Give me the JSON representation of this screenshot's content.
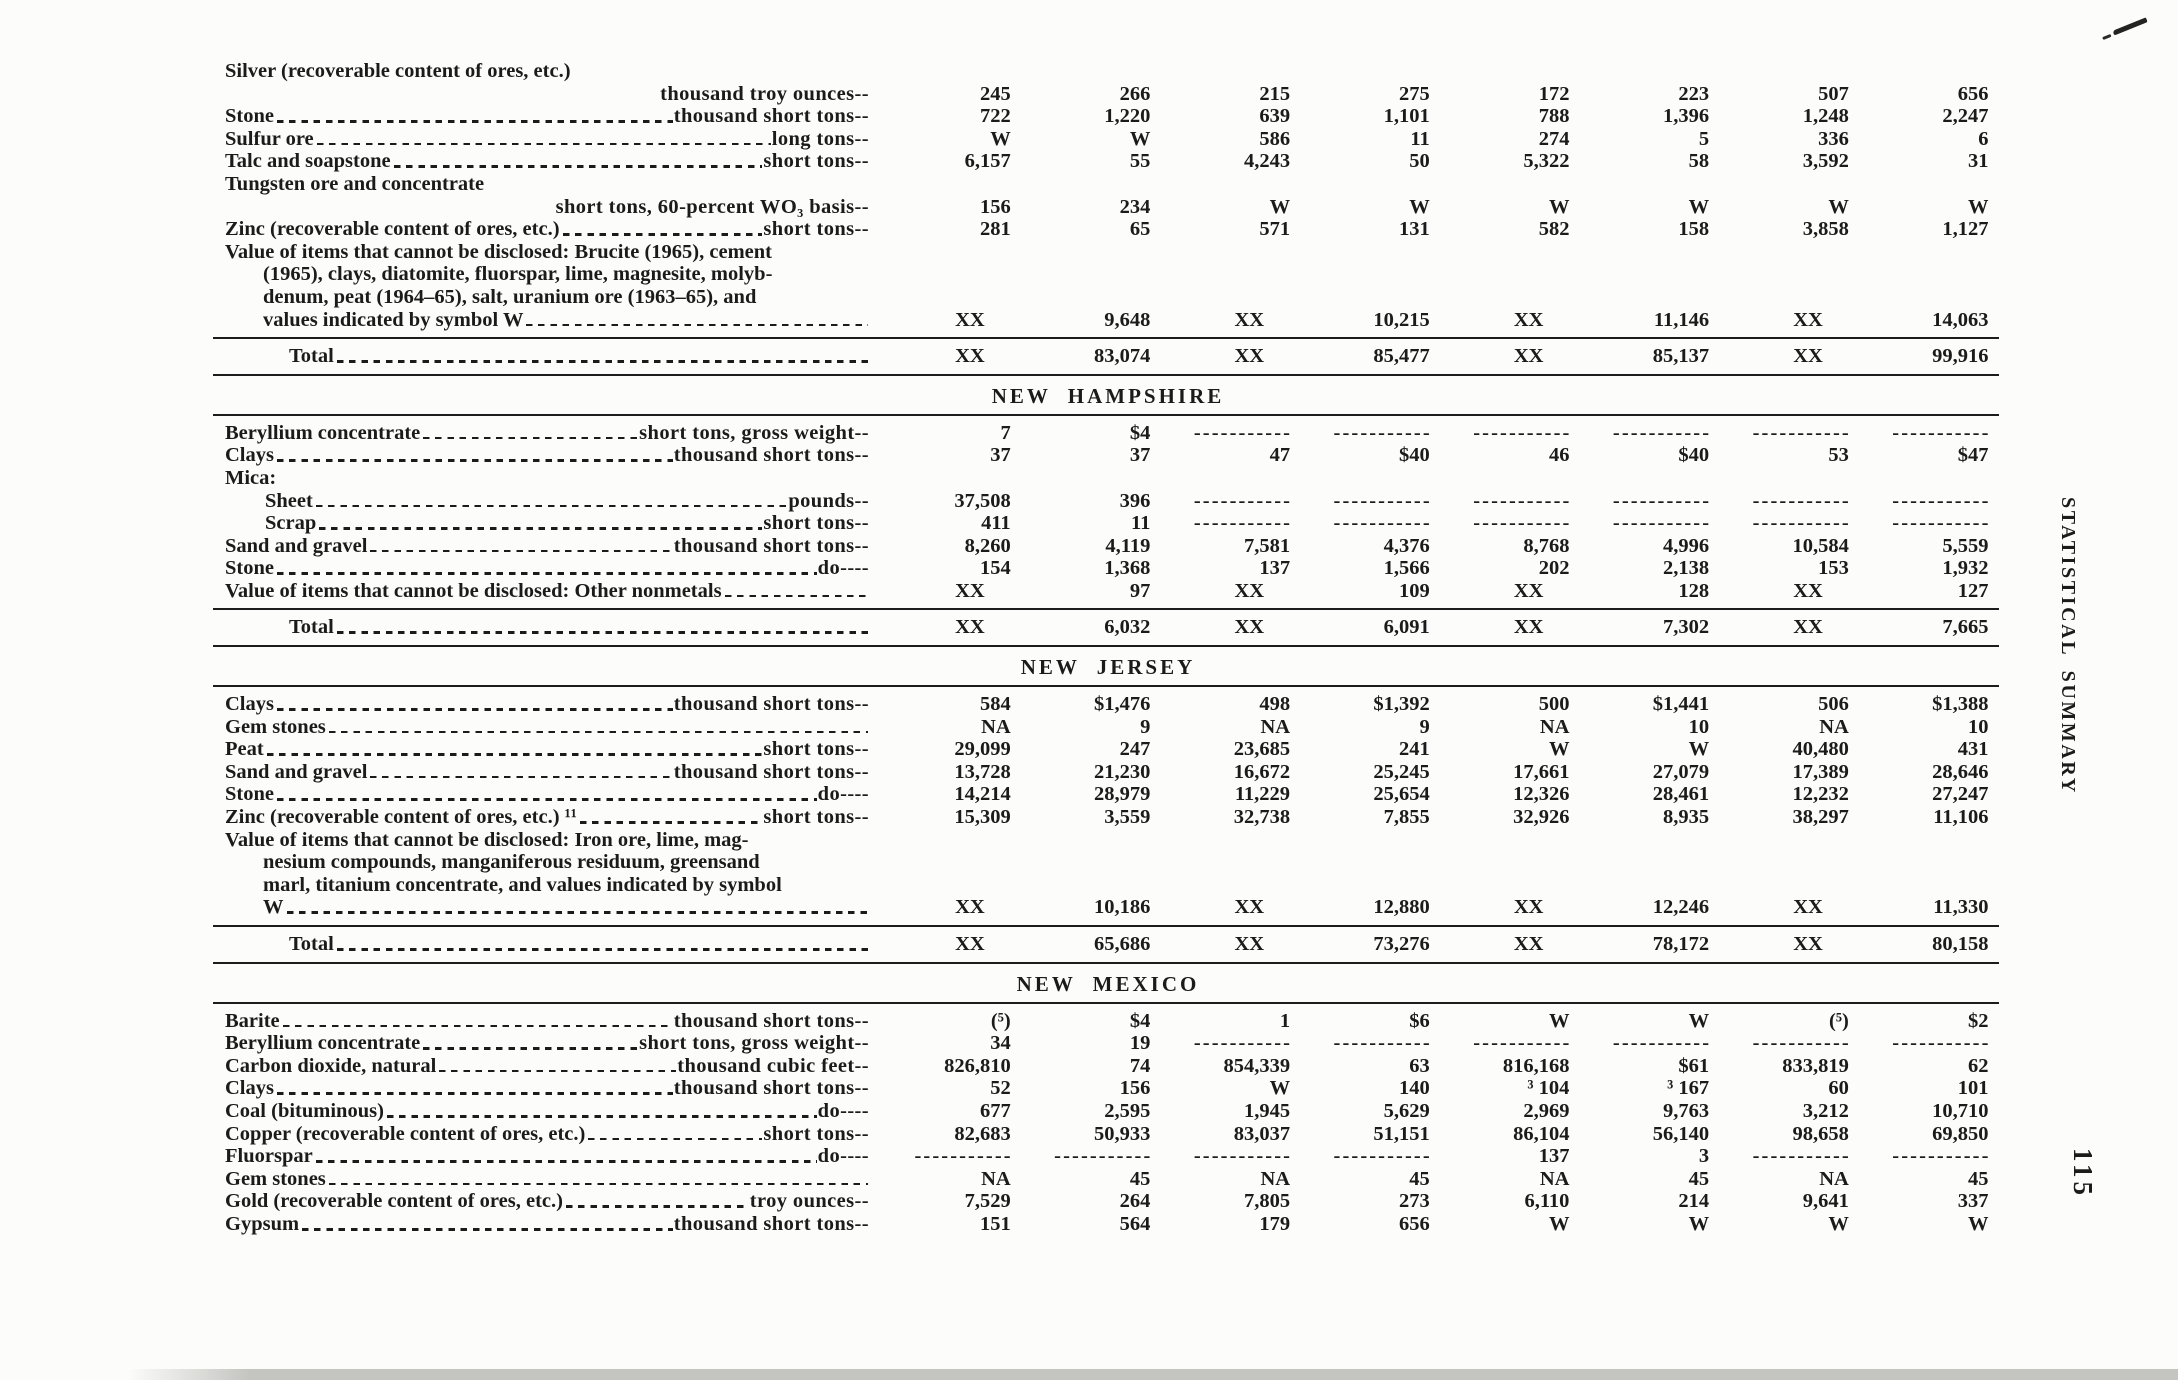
{
  "page": {
    "margin_label": "STATISTICAL SUMMARY",
    "page_number": "115"
  },
  "table": {
    "sections": [
      {
        "header": "",
        "rows": [
          {
            "t": "label",
            "label": "Silver (recoverable content of ores, etc.)"
          },
          {
            "t": "unit",
            "unit": "thousand troy ounces--",
            "values": [
              "245",
              "266",
              "215",
              "275",
              "172",
              "223",
              "507",
              "656"
            ]
          },
          {
            "t": "item",
            "label": "Stone",
            "unit": "thousand short tons--",
            "values": [
              "722",
              "1,220",
              "639",
              "1,101",
              "788",
              "1,396",
              "1,248",
              "2,247"
            ]
          },
          {
            "t": "item",
            "label": "Sulfur ore",
            "unit": "long tons--",
            "values": [
              "W",
              "W",
              "586",
              "11",
              "274",
              "5",
              "336",
              "6"
            ]
          },
          {
            "t": "item",
            "label": "Talc and soapstone",
            "unit": "short tons--",
            "values": [
              "6,157",
              "55",
              "4,243",
              "50",
              "5,322",
              "58",
              "3,592",
              "31"
            ]
          },
          {
            "t": "label",
            "label": "Tungsten ore and concentrate"
          },
          {
            "t": "unit",
            "unit": "short tons, 60-percent WO₃ basis--",
            "values": [
              "156",
              "234",
              "W",
              "W",
              "W",
              "W",
              "W",
              "W"
            ]
          },
          {
            "t": "item",
            "label": "Zinc (recoverable content of ores, etc.)",
            "unit": "short tons--",
            "values": [
              "281",
              "65",
              "571",
              "131",
              "582",
              "158",
              "3,858",
              "1,127"
            ]
          },
          {
            "t": "note",
            "lines": [
              "Value of items that cannot be disclosed: Brucite (1965), cement",
              "(1965), clays, diatomite, fluorspar, lime, magnesite, molyb-",
              "denum, peat (1964–65), salt, uranium ore (1963–65), and",
              "values indicated by symbol W"
            ],
            "values": [
              "XX",
              "9,648",
              "XX",
              "10,215",
              "XX",
              "11,146",
              "XX",
              "14,063"
            ]
          },
          {
            "t": "total",
            "label": "Total",
            "values": [
              "XX",
              "83,074",
              "XX",
              "85,477",
              "XX",
              "85,137",
              "XX",
              "99,916"
            ]
          }
        ]
      },
      {
        "header": "NEW HAMPSHIRE",
        "rows": [
          {
            "t": "item",
            "label": "Beryllium concentrate",
            "unit": "short tons, gross weight--",
            "values": [
              "7",
              "$4",
              "-----------",
              "-----------",
              "-----------",
              "-----------",
              "-----------",
              "-----------"
            ]
          },
          {
            "t": "item",
            "label": "Clays",
            "unit": "thousand short tons--",
            "values": [
              "37",
              "37",
              "47",
              "$40",
              "46",
              "$40",
              "53",
              "$47"
            ]
          },
          {
            "t": "label",
            "label": "Mica:"
          },
          {
            "t": "item",
            "indent": 1,
            "label": "Sheet",
            "unit": "pounds--",
            "values": [
              "37,508",
              "396",
              "-----------",
              "-----------",
              "-----------",
              "-----------",
              "-----------",
              "-----------"
            ]
          },
          {
            "t": "item",
            "indent": 1,
            "label": "Scrap",
            "unit": "short tons--",
            "values": [
              "411",
              "11",
              "-----------",
              "-----------",
              "-----------",
              "-----------",
              "-----------",
              "-----------"
            ]
          },
          {
            "t": "item",
            "label": "Sand and gravel",
            "unit": "thousand short tons--",
            "values": [
              "8,260",
              "4,119",
              "7,581",
              "4,376",
              "8,768",
              "4,996",
              "10,584",
              "5,559"
            ]
          },
          {
            "t": "item",
            "label": "Stone",
            "unit": "do----",
            "values": [
              "154",
              "1,368",
              "137",
              "1,566",
              "202",
              "2,138",
              "153",
              "1,932"
            ]
          },
          {
            "t": "item",
            "label": "Value of items that cannot be disclosed: Other nonmetals",
            "unit": "",
            "values": [
              "XX",
              "97",
              "XX",
              "109",
              "XX",
              "128",
              "XX",
              "127"
            ]
          },
          {
            "t": "total",
            "label": "Total",
            "values": [
              "XX",
              "6,032",
              "XX",
              "6,091",
              "XX",
              "7,302",
              "XX",
              "7,665"
            ]
          }
        ]
      },
      {
        "header": "NEW JERSEY",
        "rows": [
          {
            "t": "item",
            "label": "Clays",
            "unit": "thousand short tons--",
            "values": [
              "584",
              "$1,476",
              "498",
              "$1,392",
              "500",
              "$1,441",
              "506",
              "$1,388"
            ]
          },
          {
            "t": "item",
            "label": "Gem stones",
            "unit": "",
            "values": [
              "NA",
              "9",
              "NA",
              "9",
              "NA",
              "10",
              "NA",
              "10"
            ]
          },
          {
            "t": "item",
            "label": "Peat",
            "unit": "short tons--",
            "values": [
              "29,099",
              "247",
              "23,685",
              "241",
              "W",
              "W",
              "40,480",
              "431"
            ]
          },
          {
            "t": "item",
            "label": "Sand and gravel",
            "unit": "thousand short tons--",
            "values": [
              "13,728",
              "21,230",
              "16,672",
              "25,245",
              "17,661",
              "27,079",
              "17,389",
              "28,646"
            ]
          },
          {
            "t": "item",
            "label": "Stone",
            "unit": "do----",
            "values": [
              "14,214",
              "28,979",
              "11,229",
              "25,654",
              "12,326",
              "28,461",
              "12,232",
              "27,247"
            ]
          },
          {
            "t": "item",
            "label": "Zinc (recoverable content of ores, etc.) ¹¹",
            "unit": "short tons--",
            "values": [
              "15,309",
              "3,559",
              "32,738",
              "7,855",
              "32,926",
              "8,935",
              "38,297",
              "11,106"
            ]
          },
          {
            "t": "note",
            "lines": [
              "Value of items that cannot be disclosed: Iron ore, lime, mag-",
              "nesium compounds, manganiferous residuum, greensand",
              "marl, titanium concentrate, and values indicated by symbol",
              "W"
            ],
            "values": [
              "XX",
              "10,186",
              "XX",
              "12,880",
              "XX",
              "12,246",
              "XX",
              "11,330"
            ]
          },
          {
            "t": "total",
            "label": "Total",
            "values": [
              "XX",
              "65,686",
              "XX",
              "73,276",
              "XX",
              "78,172",
              "XX",
              "80,158"
            ]
          }
        ]
      },
      {
        "header": "NEW MEXICO",
        "rows": [
          {
            "t": "item",
            "label": "Barite",
            "unit": "thousand short tons--",
            "values": [
              "(⁵)",
              "$4",
              "1",
              "$6",
              "W",
              "W",
              "(⁵)",
              "$2"
            ]
          },
          {
            "t": "item",
            "label": "Beryllium concentrate",
            "unit": "short tons, gross weight--",
            "values": [
              "34",
              "19",
              "-----------",
              "-----------",
              "-----------",
              "-----------",
              "-----------",
              "-----------"
            ]
          },
          {
            "t": "item",
            "label": "Carbon dioxide, natural",
            "unit": "thousand cubic feet--",
            "values": [
              "826,810",
              "74",
              "854,339",
              "63",
              "816,168",
              "$61",
              "833,819",
              "62"
            ]
          },
          {
            "t": "item",
            "label": "Clays",
            "unit": "thousand short tons--",
            "values": [
              "52",
              "156",
              "W",
              "140",
              "³ 104",
              "³ 167",
              "60",
              "101"
            ]
          },
          {
            "t": "item",
            "label": "Coal (bituminous)",
            "unit": "do----",
            "values": [
              "677",
              "2,595",
              "1,945",
              "5,629",
              "2,969",
              "9,763",
              "3,212",
              "10,710"
            ]
          },
          {
            "t": "item",
            "label": "Copper (recoverable content of ores, etc.)",
            "unit": "short tons--",
            "values": [
              "82,683",
              "50,933",
              "83,037",
              "51,151",
              "86,104",
              "56,140",
              "98,658",
              "69,850"
            ]
          },
          {
            "t": "item",
            "label": "Fluorspar",
            "unit": "do----",
            "values": [
              "-----------",
              "-----------",
              "-----------",
              "-----------",
              "137",
              "3",
              "-----------",
              "-----------"
            ]
          },
          {
            "t": "item",
            "label": "Gem stones",
            "unit": "",
            "values": [
              "NA",
              "45",
              "NA",
              "45",
              "NA",
              "45",
              "NA",
              "45"
            ]
          },
          {
            "t": "item",
            "label": "Gold (recoverable content of ores, etc.)",
            "unit": "troy ounces--",
            "values": [
              "7,529",
              "264",
              "7,805",
              "273",
              "6,110",
              "214",
              "9,641",
              "337"
            ]
          },
          {
            "t": "item",
            "label": "Gypsum",
            "unit": "thousand short tons--",
            "values": [
              "151",
              "564",
              "179",
              "656",
              "W",
              "W",
              "W",
              "W"
            ]
          }
        ]
      }
    ]
  }
}
